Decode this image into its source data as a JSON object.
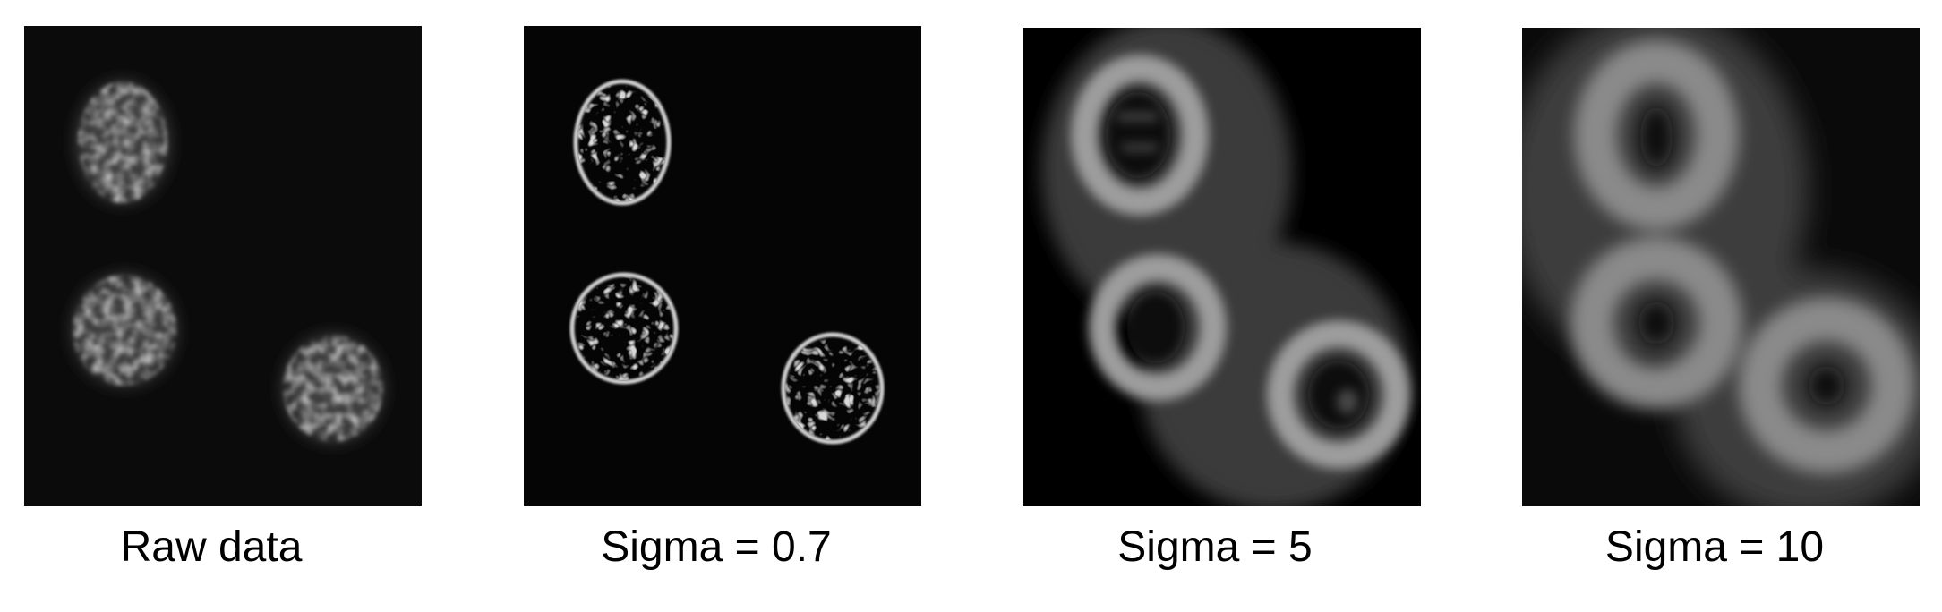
{
  "panels": [
    {
      "caption": "Raw data"
    },
    {
      "caption": "Sigma = 0.7"
    },
    {
      "caption": "Sigma = 5"
    },
    {
      "caption": "Sigma = 10"
    }
  ]
}
